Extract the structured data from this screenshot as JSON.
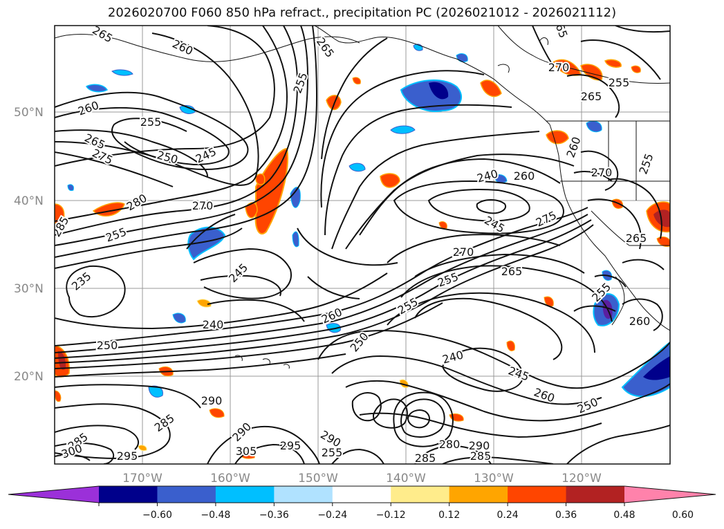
{
  "title": "2026020700 F060 850 hPa refract., precipitation PC (2026021012 - 2026021112)",
  "lat_labels": [
    "50°N",
    "40°N",
    "30°N",
    "20°N"
  ],
  "lon_labels": [
    "170°W",
    "160°W",
    "150°W",
    "140°W",
    "130°W",
    "120°W"
  ],
  "colorbar": {
    "ticks": [
      "−0.60",
      "−0.48",
      "−0.36",
      "−0.24",
      "−0.12",
      "0.12",
      "0.24",
      "0.36",
      "0.48",
      "0.60"
    ],
    "colors": [
      "#9b30d9",
      "#00008b",
      "#3a5fcd",
      "#00bfff",
      "#b0e2ff",
      "#ffffff",
      "#ffec8b",
      "#ffa500",
      "#ff4500",
      "#b22222",
      "#ff82ab"
    ]
  },
  "contour_labels": [
    "265",
    "260",
    "265",
    "255",
    "260",
    "255",
    "265",
    "275",
    "250",
    "245",
    "280",
    "270",
    "255",
    "285",
    "235",
    "245",
    "240",
    "250",
    "260",
    "255",
    "250",
    "245",
    "275",
    "270",
    "255",
    "265",
    "260",
    "240",
    "240",
    "245",
    "260",
    "250",
    "290",
    "285",
    "285",
    "300",
    "295",
    "290",
    "305",
    "295",
    "290",
    "285",
    "280",
    "290",
    "285",
    "265",
    "265",
    "270",
    "265",
    "255",
    "270",
    "260",
    "255",
    "255",
    "255",
    "260"
  ]
}
